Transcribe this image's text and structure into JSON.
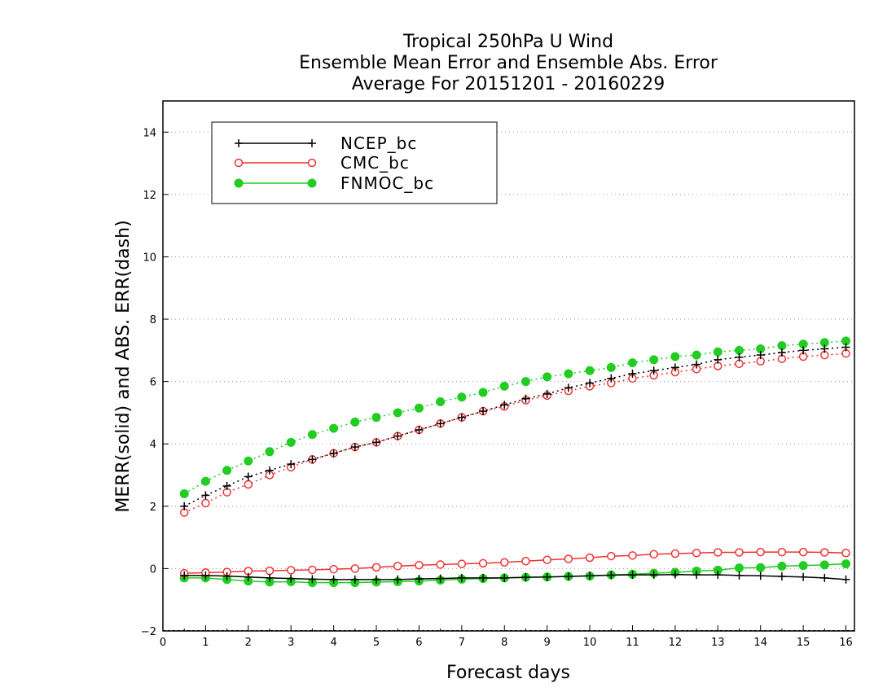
{
  "chart_data": {
    "type": "line",
    "title_lines": [
      "Tropical 250hPa U Wind",
      "Ensemble Mean Error and Ensemble Abs. Error",
      "Average For 20151201 - 20160229"
    ],
    "xlabel": "Forecast days",
    "ylabel": "MERR(solid) and ABS. ERR(dash)",
    "xlim": [
      0,
      16.2
    ],
    "ylim": [
      -2,
      15
    ],
    "xticks": [
      0,
      1,
      2,
      3,
      4,
      5,
      6,
      7,
      8,
      9,
      10,
      11,
      12,
      13,
      14,
      15,
      16
    ],
    "yticks": [
      -2,
      0,
      2,
      4,
      6,
      8,
      10,
      12,
      14
    ],
    "grid": "horizontal dotted",
    "legend_position": "top-left",
    "x": [
      0.5,
      1,
      1.5,
      2,
      2.5,
      3,
      3.5,
      4,
      4.5,
      5,
      5.5,
      6,
      6.5,
      7,
      7.5,
      8,
      8.5,
      9,
      9.5,
      10,
      10.5,
      11,
      11.5,
      12,
      12.5,
      13,
      13.5,
      14,
      14.5,
      15,
      15.5,
      16
    ],
    "series": [
      {
        "name": "NCEP_bc",
        "color": "#000000",
        "marker": "plus",
        "merr": [
          -0.22,
          -0.22,
          -0.24,
          -0.27,
          -0.3,
          -0.32,
          -0.34,
          -0.35,
          -0.35,
          -0.35,
          -0.35,
          -0.33,
          -0.32,
          -0.3,
          -0.3,
          -0.3,
          -0.28,
          -0.27,
          -0.25,
          -0.23,
          -0.21,
          -0.2,
          -0.2,
          -0.19,
          -0.2,
          -0.2,
          -0.22,
          -0.23,
          -0.25,
          -0.27,
          -0.3,
          -0.35
        ],
        "abs_err": [
          2.0,
          2.35,
          2.65,
          2.95,
          3.15,
          3.35,
          3.5,
          3.7,
          3.9,
          4.05,
          4.25,
          4.45,
          4.65,
          4.85,
          5.05,
          5.25,
          5.45,
          5.6,
          5.8,
          5.95,
          6.1,
          6.25,
          6.35,
          6.45,
          6.55,
          6.7,
          6.78,
          6.85,
          6.93,
          7.0,
          7.05,
          7.1
        ]
      },
      {
        "name": "CMC_bc",
        "color": "#ee3333",
        "marker": "open-circle",
        "merr": [
          -0.15,
          -0.13,
          -0.11,
          -0.08,
          -0.07,
          -0.05,
          -0.04,
          -0.02,
          0.0,
          0.04,
          0.08,
          0.11,
          0.13,
          0.15,
          0.17,
          0.2,
          0.24,
          0.28,
          0.31,
          0.35,
          0.4,
          0.42,
          0.46,
          0.48,
          0.5,
          0.52,
          0.52,
          0.53,
          0.53,
          0.53,
          0.52,
          0.5
        ],
        "abs_err": [
          1.8,
          2.1,
          2.45,
          2.7,
          3.0,
          3.25,
          3.5,
          3.7,
          3.9,
          4.05,
          4.25,
          4.45,
          4.65,
          4.85,
          5.05,
          5.2,
          5.4,
          5.55,
          5.7,
          5.85,
          5.95,
          6.1,
          6.2,
          6.3,
          6.4,
          6.5,
          6.57,
          6.65,
          6.73,
          6.8,
          6.85,
          6.9
        ]
      },
      {
        "name": "FNMOC_bc",
        "color": "#22cc22",
        "marker": "filled-circle",
        "merr": [
          -0.3,
          -0.3,
          -0.35,
          -0.4,
          -0.43,
          -0.42,
          -0.45,
          -0.45,
          -0.45,
          -0.43,
          -0.42,
          -0.4,
          -0.37,
          -0.34,
          -0.32,
          -0.3,
          -0.28,
          -0.27,
          -0.25,
          -0.24,
          -0.2,
          -0.18,
          -0.15,
          -0.12,
          -0.08,
          -0.05,
          0.02,
          0.03,
          0.08,
          0.1,
          0.12,
          0.15
        ],
        "abs_err": [
          2.4,
          2.8,
          3.15,
          3.45,
          3.75,
          4.05,
          4.3,
          4.5,
          4.7,
          4.85,
          5.0,
          5.15,
          5.35,
          5.5,
          5.65,
          5.85,
          6.0,
          6.15,
          6.25,
          6.35,
          6.45,
          6.6,
          6.7,
          6.8,
          6.85,
          6.95,
          7.0,
          7.05,
          7.15,
          7.2,
          7.25,
          7.3
        ]
      }
    ]
  }
}
